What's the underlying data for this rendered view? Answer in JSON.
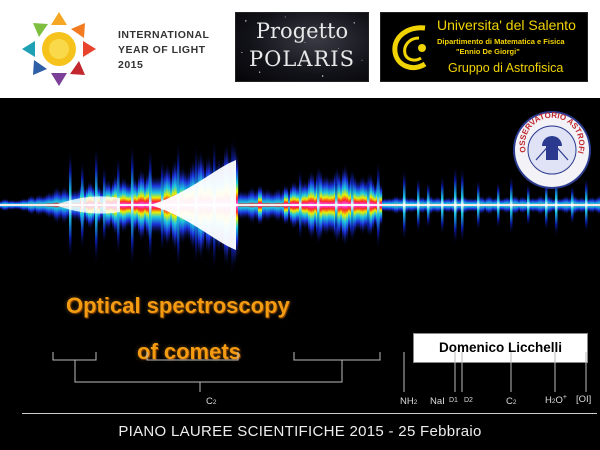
{
  "header": {
    "iyl": {
      "line1": "INTERNATIONAL",
      "line2": "YEAR OF LIGHT",
      "line3": "2015"
    },
    "polaris": {
      "line1": "Progetto",
      "line2": "POLARIS"
    },
    "university": {
      "title": "Universita' del Salento",
      "department": "Dipartimento di Matematica e Fisica",
      "ennio": "\"Ennio De Giorgi\"",
      "group": "Gruppo di Astrofisica"
    },
    "observatory": {
      "seal_text": "OSSERVATORIO ASTROFISICO R.P.FEYNMAN"
    }
  },
  "title": {
    "line1": "Optical spectroscopy",
    "line2": "of comets",
    "color": "#f39c12"
  },
  "author": "Domenico Licchelli",
  "spectral_labels": {
    "c2_left": "C",
    "c2_left_sub": "2",
    "nh2": "NH",
    "nh2_sub": "2",
    "nai": "NaI",
    "d1": "D1",
    "d2": "D2",
    "c2_right": "C",
    "c2_right_sub": "2",
    "h2o": "H",
    "h2o_sub": "2",
    "h2o_o": "O",
    "h2o_sup": "+",
    "oi": "[OI]"
  },
  "footer": "PIANO LAUREE SCIENTIFICHE 2015 - 25 Febbraio",
  "colors": {
    "background": "#000000",
    "header_bg": "#ffffff",
    "uni_yellow": "#f1d300"
  }
}
